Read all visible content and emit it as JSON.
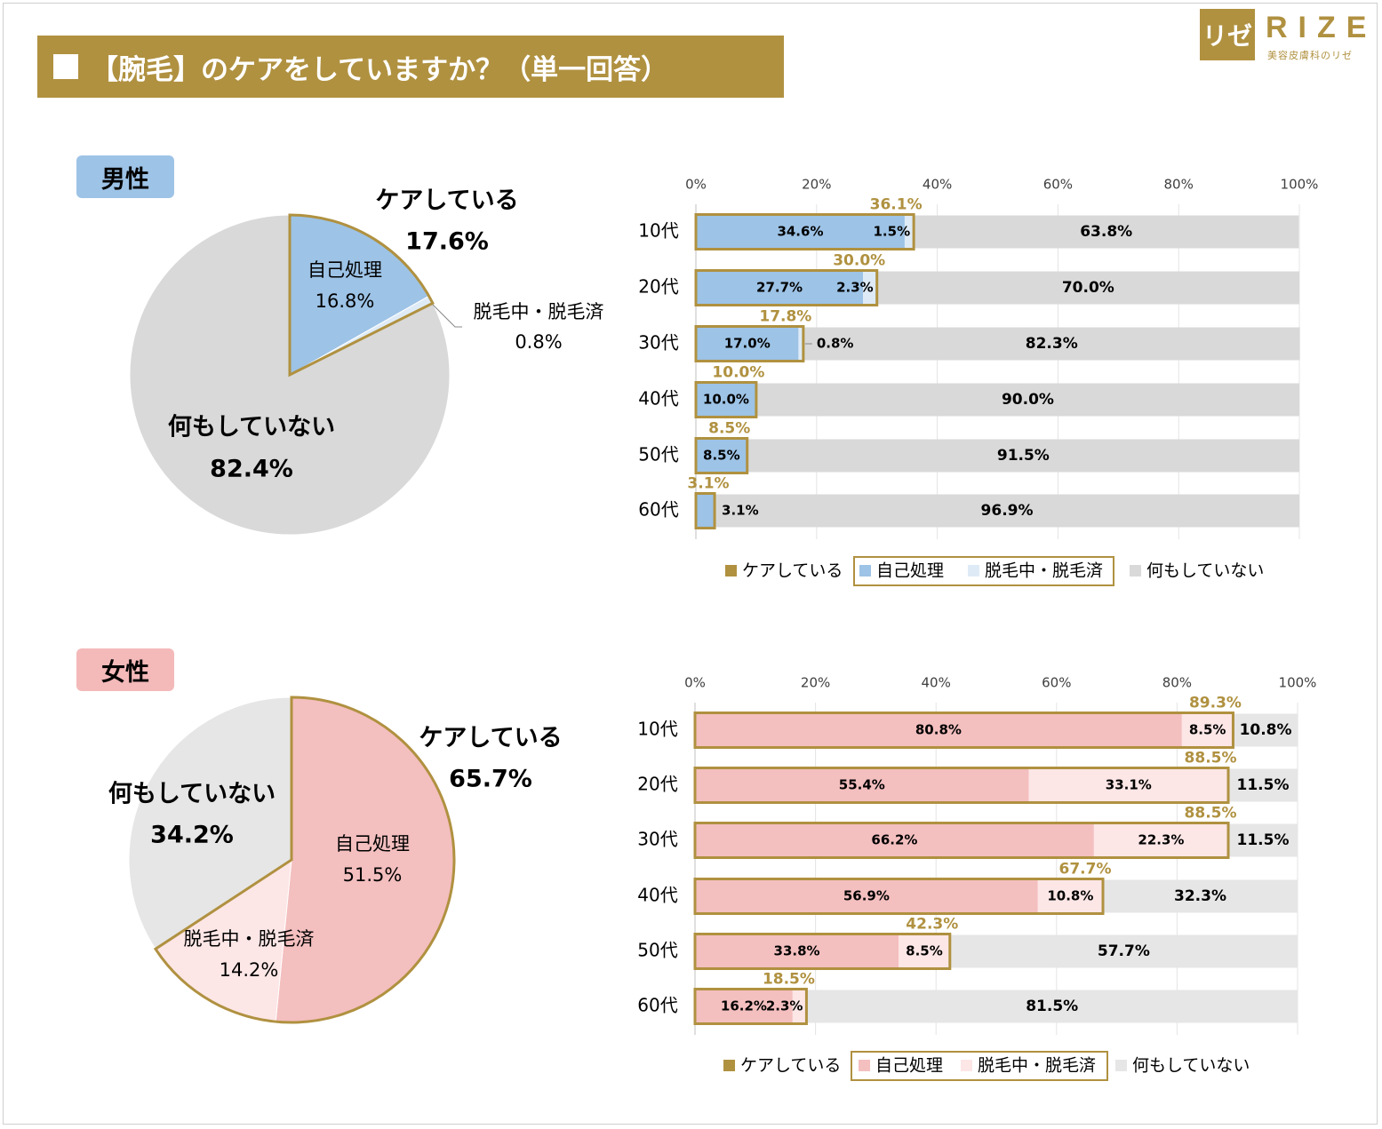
{
  "title": "【腕毛】のケアをしていますか？（単一回答）",
  "logo": {
    "mark": "リゼ",
    "name": "RIZE",
    "sub": "美容皮膚科のリゼ"
  },
  "colors": {
    "gold": "#b09140",
    "male_self": "#9dc3e6",
    "male_removal": "#deebf7",
    "none": "#d9d9d9",
    "none_female": "#e6e6e6",
    "female_self": "#f4bfbf",
    "female_removal": "#fde6e6"
  },
  "chart_data": [
    {
      "id": "male-pie",
      "type": "pie",
      "group": "男性",
      "slices": [
        {
          "label": "自己処理",
          "value": 16.8,
          "value_label": "16.8%"
        },
        {
          "label": "脱毛中・脱毛済",
          "value": 0.8,
          "value_label": "0.8%"
        },
        {
          "label": "何もしていない",
          "value": 82.4,
          "value_label": "82.4%"
        }
      ],
      "care_label": "ケアしている",
      "care_value": "17.6%"
    },
    {
      "id": "male-bar",
      "type": "bar",
      "orientation": "horizontal",
      "stacked": true,
      "x_ticks": [
        "0%",
        "20%",
        "40%",
        "60%",
        "80%",
        "100%"
      ],
      "categories": [
        "10代",
        "20代",
        "30代",
        "40代",
        "50代",
        "60代"
      ],
      "series": [
        {
          "name": "自己処理",
          "values": [
            34.6,
            27.7,
            17.0,
            10.0,
            8.5,
            3.1
          ],
          "labels": [
            "34.6%",
            "27.7%",
            "17.0%",
            "10.0%",
            "8.5%",
            "3.1%"
          ]
        },
        {
          "name": "脱毛中・脱毛済",
          "values": [
            1.5,
            2.3,
            0.8,
            0,
            0,
            0
          ],
          "labels": [
            "1.5%",
            "2.3%",
            "0.8%",
            "",
            "",
            ""
          ]
        },
        {
          "name": "何もしていない",
          "values": [
            63.8,
            70.0,
            82.3,
            90.0,
            91.5,
            96.9
          ],
          "labels": [
            "63.8%",
            "70.0%",
            "82.3%",
            "90.0%",
            "91.5%",
            "96.9%"
          ]
        }
      ],
      "care": {
        "name": "ケアしている",
        "values": [
          36.1,
          30.0,
          17.8,
          10.0,
          8.5,
          3.1
        ],
        "labels": [
          "36.1%",
          "30.0%",
          "17.8%",
          "10.0%",
          "8.5%",
          "3.1%"
        ]
      },
      "xlim": [
        0,
        100
      ],
      "legend": [
        "ケアしている",
        "自己処理",
        "脱毛中・脱毛済",
        "何もしていない"
      ]
    },
    {
      "id": "female-pie",
      "type": "pie",
      "group": "女性",
      "slices": [
        {
          "label": "自己処理",
          "value": 51.5,
          "value_label": "51.5%"
        },
        {
          "label": "脱毛中・脱毛済",
          "value": 14.2,
          "value_label": "14.2%"
        },
        {
          "label": "何もしていない",
          "value": 34.2,
          "value_label": "34.2%"
        }
      ],
      "care_label": "ケアしている",
      "care_value": "65.7%"
    },
    {
      "id": "female-bar",
      "type": "bar",
      "orientation": "horizontal",
      "stacked": true,
      "x_ticks": [
        "0%",
        "20%",
        "40%",
        "60%",
        "80%",
        "100%"
      ],
      "categories": [
        "10代",
        "20代",
        "30代",
        "40代",
        "50代",
        "60代"
      ],
      "series": [
        {
          "name": "自己処理",
          "values": [
            80.8,
            55.4,
            66.2,
            56.9,
            33.8,
            16.2
          ],
          "labels": [
            "80.8%",
            "55.4%",
            "66.2%",
            "56.9%",
            "33.8%",
            "16.2%"
          ]
        },
        {
          "name": "脱毛中・脱毛済",
          "values": [
            8.5,
            33.1,
            22.3,
            10.8,
            8.5,
            2.3
          ],
          "labels": [
            "8.5%",
            "33.1%",
            "22.3%",
            "10.8%",
            "8.5%",
            "2.3%"
          ]
        },
        {
          "name": "何もしていない",
          "values": [
            10.8,
            11.5,
            11.5,
            32.3,
            57.7,
            81.5
          ],
          "labels": [
            "10.8%",
            "11.5%",
            "11.5%",
            "32.3%",
            "57.7%",
            "81.5%"
          ]
        }
      ],
      "care": {
        "name": "ケアしている",
        "values": [
          89.3,
          88.5,
          88.5,
          67.7,
          42.3,
          18.5
        ],
        "labels": [
          "89.3%",
          "88.5%",
          "88.5%",
          "67.7%",
          "42.3%",
          "18.5%"
        ]
      },
      "xlim": [
        0,
        100
      ],
      "legend": [
        "ケアしている",
        "自己処理",
        "脱毛中・脱毛済",
        "何もしていない"
      ]
    }
  ]
}
